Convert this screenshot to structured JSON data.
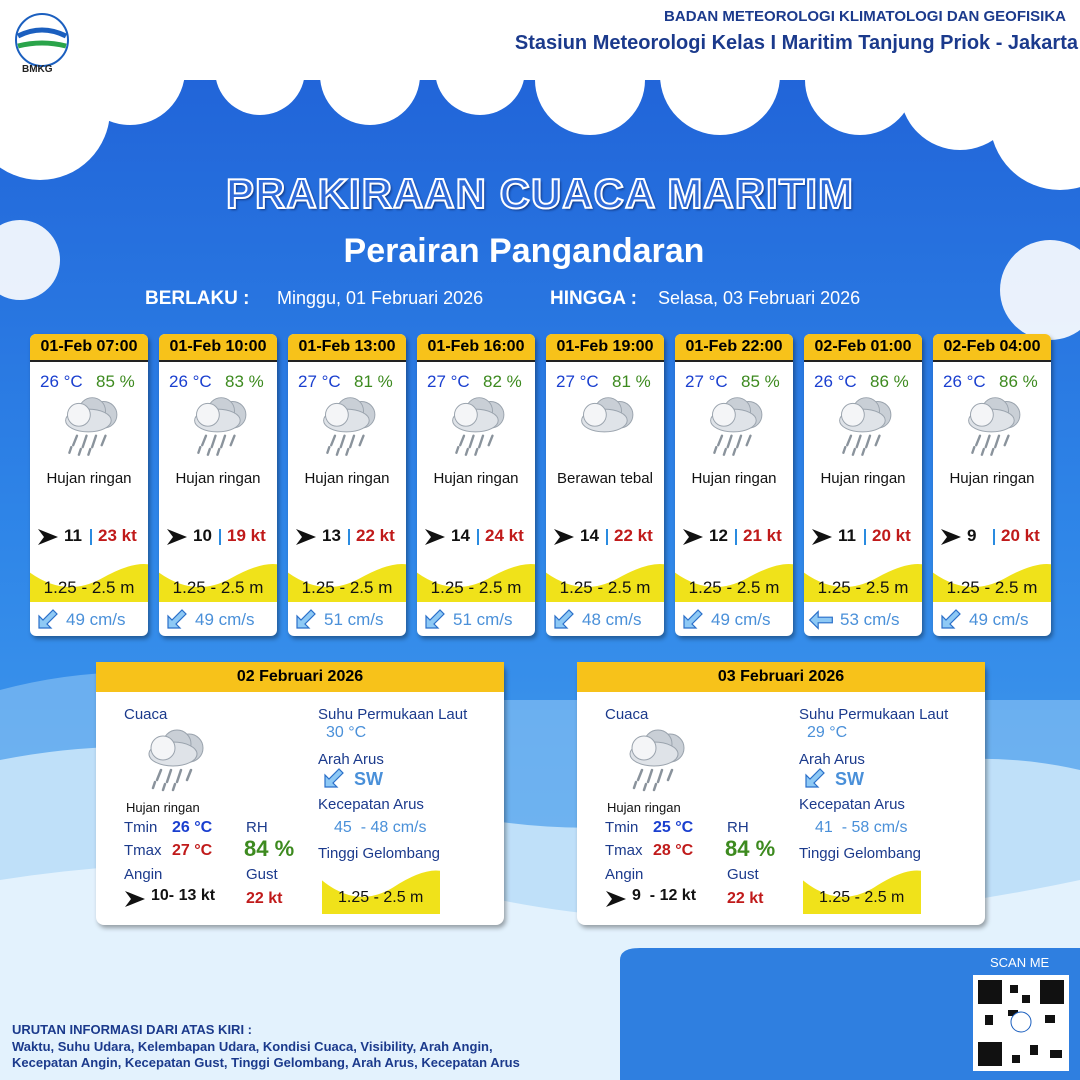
{
  "header": {
    "logo_text": "BMKG",
    "agency": "BADAN METEOROLOGI KLIMATOLOGI DAN GEOFISIKA",
    "station": "Stasiun Meteorologi Kelas I Maritim Tanjung Priok - Jakarta"
  },
  "title": "PRAKIRAAN CUACA MARITIM",
  "subtitle": "Perairan Pangandaran",
  "validity": {
    "from_label": "BERLAKU :",
    "from": "Minggu, 01 Februari 2026",
    "to_label": "HINGGA :",
    "to": "Selasa, 03 Februari 2026"
  },
  "forecasts": [
    {
      "time": "01-Feb 07:00",
      "temperature": "26 °C",
      "humidity": "85 %",
      "condition": "Hujan ringan",
      "wind_speed": "11",
      "gust": "23 kt",
      "wave_height": "1.25 - 2.5 m",
      "current_speed": "49 cm/s"
    },
    {
      "time": "01-Feb 10:00",
      "temperature": "26 °C",
      "humidity": "83 %",
      "condition": "Hujan ringan",
      "wind_speed": "10",
      "gust": "19 kt",
      "wave_height": "1.25 - 2.5 m",
      "current_speed": "49 cm/s"
    },
    {
      "time": "01-Feb 13:00",
      "temperature": "27 °C",
      "humidity": "81 %",
      "condition": "Hujan ringan",
      "wind_speed": "13",
      "gust": "22 kt",
      "wave_height": "1.25 - 2.5 m",
      "current_speed": "51 cm/s"
    },
    {
      "time": "01-Feb 16:00",
      "temperature": "27 °C",
      "humidity": "82 %",
      "condition": "Hujan ringan",
      "wind_speed": "14",
      "gust": "24 kt",
      "wave_height": "1.25 - 2.5 m",
      "current_speed": "51 cm/s"
    },
    {
      "time": "01-Feb 19:00",
      "temperature": "27 °C",
      "humidity": "81 %",
      "condition": "Berawan tebal",
      "wind_speed": "14",
      "gust": "22 kt",
      "wave_height": "1.25 - 2.5 m",
      "current_speed": "48 cm/s"
    },
    {
      "time": "01-Feb 22:00",
      "temperature": "27 °C",
      "humidity": "85 %",
      "condition": "Hujan ringan",
      "wind_speed": "12",
      "gust": "21 kt",
      "wave_height": "1.25 - 2.5 m",
      "current_speed": "49 cm/s"
    },
    {
      "time": "02-Feb 01:00",
      "temperature": "26 °C",
      "humidity": "86 %",
      "condition": "Hujan ringan",
      "wind_speed": "11",
      "gust": "20 kt",
      "wave_height": "1.25 - 2.5 m",
      "current_speed": "53 cm/s"
    },
    {
      "time": "02-Feb 04:00",
      "temperature": "26 °C",
      "humidity": "86 %",
      "condition": "Hujan ringan",
      "wind_speed": "9",
      "gust": "20 kt",
      "wave_height": "1.25 - 2.5 m",
      "current_speed": "49 cm/s"
    }
  ],
  "daily": [
    {
      "date": "02 Februari 2026",
      "weather_label": "Cuaca",
      "condition": "Hujan ringan",
      "tmin_label": "Tmin",
      "tmin": "26 °C",
      "tmax_label": "Tmax",
      "tmax": "27 °C",
      "rh_label": "RH",
      "rh": "84 %",
      "wind_label": "Angin",
      "wind": "10- 13 kt",
      "gust_label": "Gust",
      "gust": "22 kt",
      "sst_label": "Suhu Permukaan Laut",
      "sst": "30 °C",
      "current_direction_label": "Arah Arus",
      "current_direction": "SW",
      "current_speed_label": "Kecepatan Arus",
      "current_speed": "45  - 48 cm/s",
      "wave_label": "Tinggi Gelombang",
      "wave_height": "1.25 - 2.5 m"
    },
    {
      "date": "03 Februari 2026",
      "weather_label": "Cuaca",
      "condition": "Hujan ringan",
      "tmin_label": "Tmin",
      "tmin": "25 °C",
      "tmax_label": "Tmax",
      "tmax": "28 °C",
      "rh_label": "RH",
      "rh": "84 %",
      "wind_label": "Angin",
      "wind": "9  - 12 kt",
      "gust_label": "Gust",
      "gust": "22 kt",
      "sst_label": "Suhu Permukaan Laut",
      "sst": "29 °C",
      "current_direction_label": "Arah Arus",
      "current_direction": "SW",
      "current_speed_label": "Kecepatan Arus",
      "current_speed": "41  - 58 cm/s",
      "wave_label": "Tinggi Gelombang",
      "wave_height": "1.25 - 2.5 m"
    }
  ],
  "footer": {
    "scan_label": "SCAN ME",
    "legend_title": "URUTAN INFORMASI DARI ATAS KIRI :",
    "legend_lines": [
      "Waktu, Suhu Udara, Kelembapan Udara, Kondisi Cuaca, Visibility, Arah Angin,",
      "Kecepatan Angin, Kecepatan Gust, Tinggi Gelombang, Arah Arus, Kecepatan Arus"
    ]
  }
}
